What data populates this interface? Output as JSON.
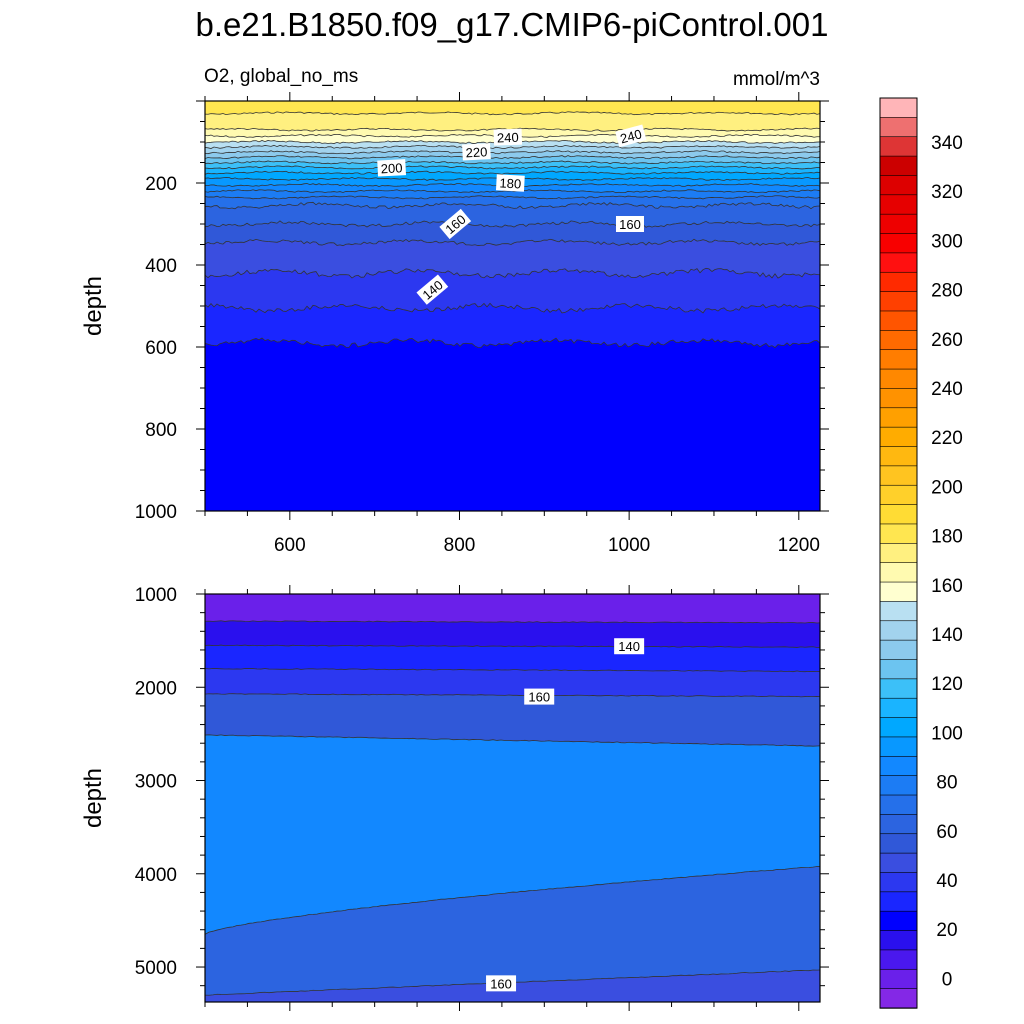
{
  "figure": {
    "title": "b.e21.B1850.f09_g17.CMIP6-piControl.001",
    "variable_label": "O2, global_no_ms",
    "units_label": "mmol/m^3"
  },
  "chart_data": [
    {
      "type": "contour",
      "panel": "upper",
      "ylabel": "depth",
      "xlim": [
        500,
        1225
      ],
      "ylim": [
        0,
        1000
      ],
      "y_inverted": true,
      "x_ticks": [
        600,
        800,
        1000,
        1200
      ],
      "y_ticks": [
        200,
        400,
        600,
        800,
        1000
      ],
      "contour_levels": [
        240,
        235,
        230,
        225,
        220,
        215,
        210,
        205,
        200,
        195,
        190,
        185,
        180,
        175,
        170,
        165,
        160,
        155,
        150,
        145,
        140,
        135
      ],
      "contour_depths": [
        30,
        70,
        85,
        100,
        112,
        125,
        137,
        150,
        162,
        175,
        190,
        205,
        220,
        235,
        255,
        300,
        345,
        420,
        505,
        590
      ],
      "contour_line_levels": [
        235,
        230,
        225,
        220,
        215,
        210,
        205,
        200,
        195,
        190,
        185,
        180,
        175,
        170,
        160,
        155,
        150,
        145,
        140
      ],
      "contour_labels": [
        {
          "text": "240",
          "x": 857,
          "y": 88,
          "angle": -2
        },
        {
          "text": "240",
          "x": 1002,
          "y": 85,
          "angle": -15
        },
        {
          "text": "220",
          "x": 820,
          "y": 124,
          "angle": -3
        },
        {
          "text": "200",
          "x": 720,
          "y": 163,
          "angle": -3
        },
        {
          "text": "180",
          "x": 860,
          "y": 200,
          "angle": 3
        },
        {
          "text": "160",
          "x": 795,
          "y": 300,
          "angle": -40
        },
        {
          "text": "160",
          "x": 1001,
          "y": 300,
          "angle": 0
        },
        {
          "text": "140",
          "x": 768,
          "y": 460,
          "angle": -40
        }
      ]
    },
    {
      "type": "contour",
      "panel": "lower",
      "ylabel": "depth",
      "xlim": [
        500,
        1225
      ],
      "ylim": [
        1000,
        5375
      ],
      "y_inverted": true,
      "y_ticks": [
        1000,
        2000,
        3000,
        4000,
        5000
      ],
      "contour_levels": [
        135,
        140,
        145,
        150,
        155,
        160,
        165,
        170,
        165,
        160
      ],
      "contour_depths_left": [
        1290,
        1550,
        1800,
        2070,
        2510,
        4650,
        5300
      ],
      "contour_depths_right": [
        1310,
        1570,
        1830,
        2100,
        2630,
        3920,
        5030
      ],
      "contour_labels": [
        {
          "text": "140",
          "x": 1000,
          "y": 1560,
          "angle": 0
        },
        {
          "text": "160",
          "x": 894,
          "y": 2100,
          "angle": 0
        },
        {
          "text": "160",
          "x": 849,
          "y": 5175,
          "angle": 0
        }
      ]
    }
  ],
  "colorbar": {
    "levels_top_to_bottom": [
      355,
      345,
      340,
      335,
      330,
      325,
      320,
      315,
      310,
      305,
      300,
      295,
      290,
      285,
      280,
      275,
      270,
      265,
      260,
      255,
      250,
      245,
      240,
      235,
      230,
      225,
      220,
      215,
      210,
      205,
      200,
      195,
      190,
      185,
      180,
      175,
      170,
      165,
      160,
      155,
      150,
      145,
      140,
      135,
      130,
      125,
      120,
      115,
      110,
      105,
      100,
      95,
      90,
      85,
      80,
      75,
      70,
      65,
      60,
      55,
      50,
      45,
      40,
      35,
      30,
      25,
      20,
      15,
      10,
      5,
      0
    ],
    "tick_labels": [
      "340",
      "320",
      "300",
      "280",
      "260",
      "240",
      "220",
      "200",
      "180",
      "160",
      "140",
      "120",
      "100",
      "80",
      "60",
      "40",
      "20",
      "0"
    ],
    "colors_top_to_bottom": [
      "#ffb5b8",
      "#ee7070",
      "#de3535",
      "#cc0000",
      "#dd0000",
      "#e60000",
      "#ee0000",
      "#f80000",
      "#ff1010",
      "#ff2a00",
      "#ff4000",
      "#ff5500",
      "#ff6a00",
      "#ff7d00",
      "#ff8800",
      "#ff9200",
      "#ffa000",
      "#ffac00",
      "#ffb810",
      "#ffc420",
      "#ffd02a",
      "#ffdc34",
      "#ffe650",
      "#fff080",
      "#fffab0",
      "#ffffd0",
      "#b9e0f2",
      "#a2d3ee",
      "#8ccaed",
      "#6cc4f0",
      "#3cc0f8",
      "#1ab4ff",
      "#00a8ff",
      "#0898ff",
      "#1288ff",
      "#1c7cf4",
      "#2570ea",
      "#2c64e0",
      "#3058d8",
      "#3a4ee0",
      "#2c38f0",
      "#1a26ff",
      "#0000ff",
      "#2a10ee",
      "#4a18ee",
      "#6a20ea",
      "#8428e6"
    ]
  }
}
